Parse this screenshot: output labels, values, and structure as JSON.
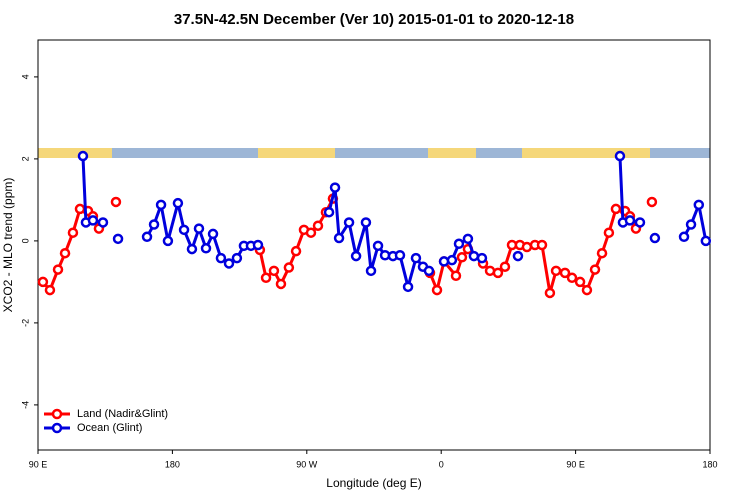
{
  "chart_data": {
    "type": "line",
    "title": "37.5N-42.5N December (Ver 10)   2015-01-01 to 2020-12-18",
    "x_label": "Longitude (deg E)",
    "y_label": "XCO2 - MLO trend (ppm)",
    "xlim": [
      90,
      540
    ],
    "ylim": [
      -5.1,
      4.9
    ],
    "xticks": [
      {
        "value": 90,
        "label": "90 E"
      },
      180,
      {
        "value": 270,
        "label": "90 W"
      },
      {
        "value": 360,
        "label": "0"
      },
      {
        "value": 450,
        "label": "90 E"
      },
      {
        "value": 540,
        "label": "180"
      }
    ],
    "yticks": [
      -4,
      -2,
      0,
      2,
      4
    ],
    "legend": "bottom-left",
    "series": [
      {
        "name": "Land (Nadir&Glint)",
        "color": "#ff0000",
        "x": [
          93.3,
          98,
          103.4,
          108.1,
          113.4,
          118.1,
          123.5,
          126.8,
          130.8,
          null,
          142.2,
          null,
          238.6,
          242.7,
          248,
          252.7,
          258,
          262.8,
          268.1,
          272.8,
          277.5,
          282.8,
          287.5,
          null,
          352.5,
          357.2,
          361.9,
          369.9,
          373.9,
          377.9,
          388,
          392.7,
          398,
          402.7,
          407.4,
          412.7,
          417.4,
          422.8,
          427.5,
          432.8,
          436.9,
          442.9,
          447.6,
          453,
          457.6,
          463,
          467.7,
          472.3,
          477,
          483.1,
          486.4,
          490.4,
          null,
          501.1
        ],
        "values": [
          -1.0,
          -1.2,
          -0.7,
          -0.3,
          0.2,
          0.78,
          0.73,
          0.6,
          0.3,
          null,
          0.95,
          null,
          -0.22,
          -0.9,
          -0.73,
          -1.05,
          -0.65,
          -0.25,
          0.27,
          0.2,
          0.37,
          0.7,
          1.03,
          null,
          -0.78,
          -1.2,
          -0.5,
          -0.85,
          -0.4,
          -0.2,
          -0.55,
          -0.73,
          -0.78,
          -0.63,
          -0.1,
          -0.1,
          -0.15,
          -0.1,
          -0.1,
          -1.27,
          -0.73,
          -0.78,
          -0.9,
          -1.0,
          -1.2,
          -0.7,
          -0.3,
          0.2,
          0.78,
          0.73,
          0.6,
          0.3,
          null,
          0.95
        ]
      },
      {
        "name": "Ocean (Glint)",
        "color": "#0000dd",
        "x": [
          120.1,
          122.1,
          126.8,
          133.5,
          null,
          143.6,
          null,
          163,
          167.7,
          172.4,
          177,
          183.7,
          187.8,
          193.1,
          197.8,
          202.5,
          207.2,
          212.5,
          217.9,
          223.2,
          227.9,
          232.6,
          237.3,
          null,
          284.9,
          288.9,
          291.6,
          298.3,
          303,
          309.6,
          313,
          317.7,
          322.4,
          327.7,
          332.4,
          337.8,
          343.1,
          347.8,
          351.8,
          null,
          361.9,
          367.2,
          371.9,
          377.9,
          381.9,
          387.3,
          null,
          411.4,
          null,
          479.7,
          481.7,
          486.4,
          493.1,
          null,
          503.1,
          null,
          522.6,
          527.3,
          532.5,
          537.2
        ],
        "values": [
          2.07,
          0.45,
          0.5,
          0.45,
          null,
          0.05,
          null,
          0.1,
          0.4,
          0.88,
          0.0,
          0.92,
          0.27,
          -0.2,
          0.3,
          -0.18,
          0.17,
          -0.42,
          -0.55,
          -0.42,
          -0.12,
          -0.12,
          -0.1,
          null,
          0.7,
          1.3,
          0.07,
          0.45,
          -0.37,
          0.45,
          -0.73,
          -0.12,
          -0.35,
          -0.37,
          -0.35,
          -1.12,
          -0.42,
          -0.63,
          -0.73,
          null,
          -0.5,
          -0.47,
          -0.07,
          0.05,
          -0.37,
          -0.42,
          null,
          -0.37,
          null,
          2.07,
          0.45,
          0.5,
          0.45,
          null,
          0.07,
          null,
          0.1,
          0.4,
          0.88,
          0.0
        ]
      }
    ]
  }
}
